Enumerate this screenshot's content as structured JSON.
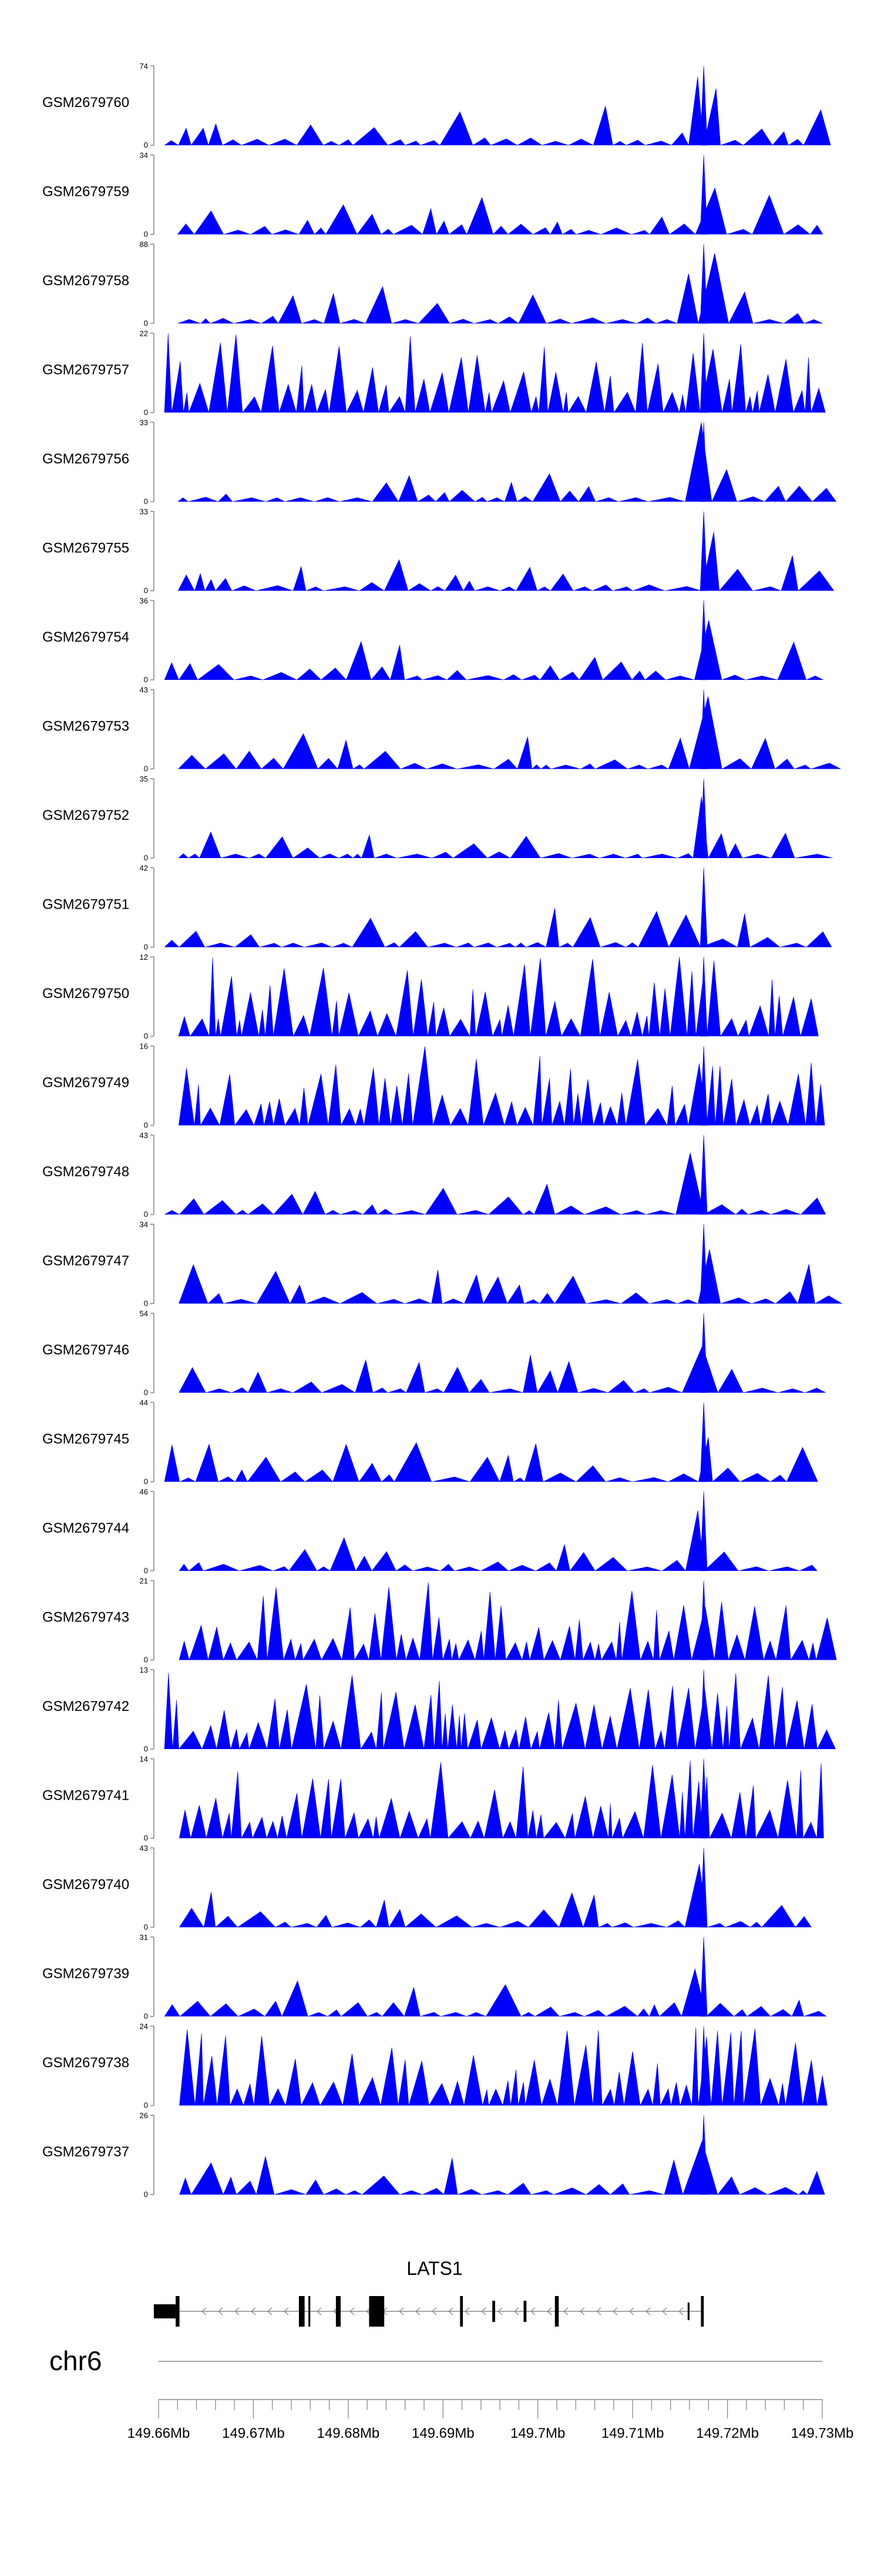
{
  "chart_data": {
    "type": "area",
    "chromosome": "chr6",
    "gene": {
      "name": "LATS1",
      "strand": "-"
    },
    "x_range": [
      149.66,
      149.73
    ],
    "x_unit": "Mb",
    "x_ticks": [
      "149.66Mb",
      "149.67Mb",
      "149.68Mb",
      "149.69Mb",
      "149.7Mb",
      "149.71Mb",
      "149.72Mb",
      "149.73Mb"
    ],
    "peak_position": 149.7175,
    "tracks": [
      {
        "name": "GSM2679760",
        "ymax": 74,
        "pattern": "sparse",
        "seed": 11
      },
      {
        "name": "GSM2679759",
        "ymax": 34,
        "pattern": "sparse",
        "seed": 23
      },
      {
        "name": "GSM2679758",
        "ymax": 88,
        "pattern": "sparse",
        "seed": 37
      },
      {
        "name": "GSM2679757",
        "ymax": 22,
        "pattern": "dense",
        "seed": 41
      },
      {
        "name": "GSM2679756",
        "ymax": 33,
        "pattern": "sparse",
        "seed": 53
      },
      {
        "name": "GSM2679755",
        "ymax": 33,
        "pattern": "sparse",
        "seed": 67
      },
      {
        "name": "GSM2679754",
        "ymax": 36,
        "pattern": "sparse",
        "seed": 71
      },
      {
        "name": "GSM2679753",
        "ymax": 43,
        "pattern": "sparse",
        "seed": 83
      },
      {
        "name": "GSM2679752",
        "ymax": 35,
        "pattern": "sparse",
        "seed": 97
      },
      {
        "name": "GSM2679751",
        "ymax": 42,
        "pattern": "sparse",
        "seed": 101
      },
      {
        "name": "GSM2679750",
        "ymax": 12,
        "pattern": "dense",
        "seed": 113
      },
      {
        "name": "GSM2679749",
        "ymax": 16,
        "pattern": "dense",
        "seed": 127
      },
      {
        "name": "GSM2679748",
        "ymax": 43,
        "pattern": "sparse",
        "seed": 131
      },
      {
        "name": "GSM2679747",
        "ymax": 34,
        "pattern": "sparse",
        "seed": 139
      },
      {
        "name": "GSM2679746",
        "ymax": 54,
        "pattern": "sparse",
        "seed": 149
      },
      {
        "name": "GSM2679745",
        "ymax": 44,
        "pattern": "sparse",
        "seed": 151
      },
      {
        "name": "GSM2679744",
        "ymax": 46,
        "pattern": "sparse",
        "seed": 163
      },
      {
        "name": "GSM2679743",
        "ymax": 21,
        "pattern": "dense",
        "seed": 167
      },
      {
        "name": "GSM2679742",
        "ymax": 13,
        "pattern": "dense",
        "seed": 173
      },
      {
        "name": "GSM2679741",
        "ymax": 14,
        "pattern": "dense",
        "seed": 179
      },
      {
        "name": "GSM2679740",
        "ymax": 43,
        "pattern": "sparse",
        "seed": 181
      },
      {
        "name": "GSM2679739",
        "ymax": 31,
        "pattern": "sparse",
        "seed": 191
      },
      {
        "name": "GSM2679738",
        "ymax": 24,
        "pattern": "dense",
        "seed": 193
      },
      {
        "name": "GSM2679737",
        "ymax": 26,
        "pattern": "sparse",
        "seed": 197
      }
    ],
    "colors": {
      "signal": "#0000ff",
      "gene": "#000000",
      "axis": "#666666"
    }
  }
}
